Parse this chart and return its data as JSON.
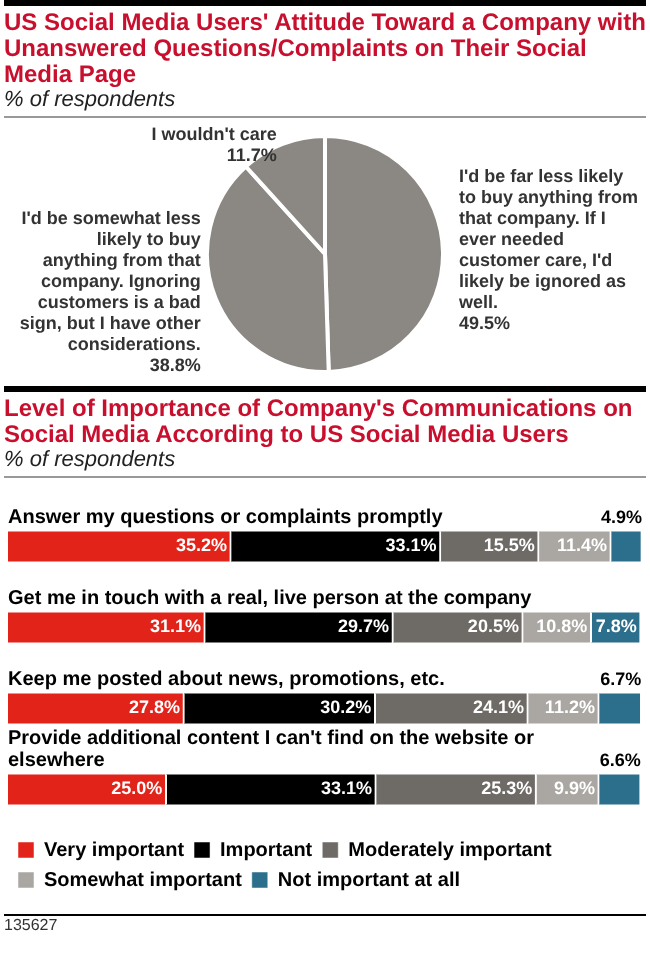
{
  "chart_data": [
    {
      "type": "pie",
      "title": "US Social Media Users' Attitude Toward a Company with Unanswered Questions/Complaints on Their Social Media Page",
      "subtitle": "% of respondents",
      "categories": [
        "I'd be far less likely to buy anything from that company. If I ever needed customer care, I'd likely be ignored as well.",
        "I'd be somewhat less likely to buy anything from that company. Ignoring customers is a bad sign, but I have other considerations.",
        "I wouldn't care"
      ],
      "values": [
        49.5,
        38.8,
        11.7
      ],
      "value_labels": [
        "49.5%",
        "38.8%",
        "11.7%"
      ],
      "colors": [
        "#8b8783",
        "#8b8783",
        "#8b8783"
      ]
    },
    {
      "type": "bar",
      "orientation": "horizontal",
      "stacked": true,
      "title": "Level of Importance of Company's Communications on Social Media According to US Social Media Users",
      "subtitle": "% of respondents",
      "categories": [
        "Answer my questions or complaints promptly",
        "Get me in touch with a real, live person at the company",
        "Keep me posted about news, promotions, etc.",
        "Provide additional content I can't find on the website or elsewhere"
      ],
      "legend": "bottom",
      "annotations": [
        "135627"
      ],
      "series": [
        {
          "name": "Very important",
          "color": "#e2231a",
          "values": [
            35.2,
            31.1,
            27.8,
            25.0
          ],
          "value_labels": [
            "35.2%",
            "31.1%",
            "27.8%",
            "25.0%"
          ]
        },
        {
          "name": "Important",
          "color": "#000000",
          "values": [
            33.1,
            29.7,
            30.2,
            33.1
          ],
          "value_labels": [
            "33.1%",
            "29.7%",
            "30.2%",
            "33.1%"
          ]
        },
        {
          "name": "Moderately important",
          "color": "#6e6a66",
          "values": [
            15.5,
            20.5,
            24.1,
            25.3
          ],
          "value_labels": [
            "15.5%",
            "20.5%",
            "24.1%",
            "25.3%"
          ]
        },
        {
          "name": "Somewhat important",
          "color": "#aaa7a3",
          "values": [
            11.4,
            10.8,
            11.2,
            9.9
          ],
          "value_labels": [
            "11.4%",
            "10.8%",
            "11.2%",
            "9.9%"
          ]
        },
        {
          "name": "Not important at all",
          "color": "#2b6f8c",
          "values": [
            4.9,
            7.8,
            6.7,
            6.6
          ],
          "value_labels": [
            "4.9%",
            "7.8%",
            "6.7%",
            "6.6%"
          ]
        }
      ]
    }
  ]
}
